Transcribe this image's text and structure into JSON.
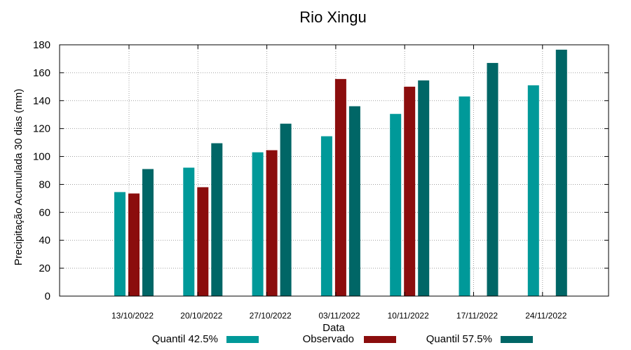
{
  "chart_data": {
    "type": "bar",
    "title": "Rio Xingu",
    "xlabel": "Data",
    "ylabel": "Precipitação Acumulada 30 dias (mm)",
    "ylim": [
      0,
      180
    ],
    "yticks": [
      0,
      20,
      40,
      60,
      80,
      100,
      120,
      140,
      160,
      180
    ],
    "grid": true,
    "legend_position": "bottom",
    "categories": [
      "13/10/2022",
      "20/10/2022",
      "27/10/2022",
      "03/11/2022",
      "10/11/2022",
      "17/11/2022",
      "24/11/2022"
    ],
    "series": [
      {
        "name": "Quantil 42.5%",
        "color": "#009999",
        "values": [
          74.5,
          92,
          103,
          114.5,
          130.5,
          143,
          151
        ]
      },
      {
        "name": "Observado",
        "color": "#8b0d0d",
        "values": [
          73.5,
          78,
          104.5,
          155.5,
          150,
          null,
          null
        ]
      },
      {
        "name": "Quantil 57.5%",
        "color": "#006666",
        "values": [
          91,
          109.5,
          123.5,
          136,
          154.5,
          167,
          176.5
        ]
      }
    ]
  }
}
